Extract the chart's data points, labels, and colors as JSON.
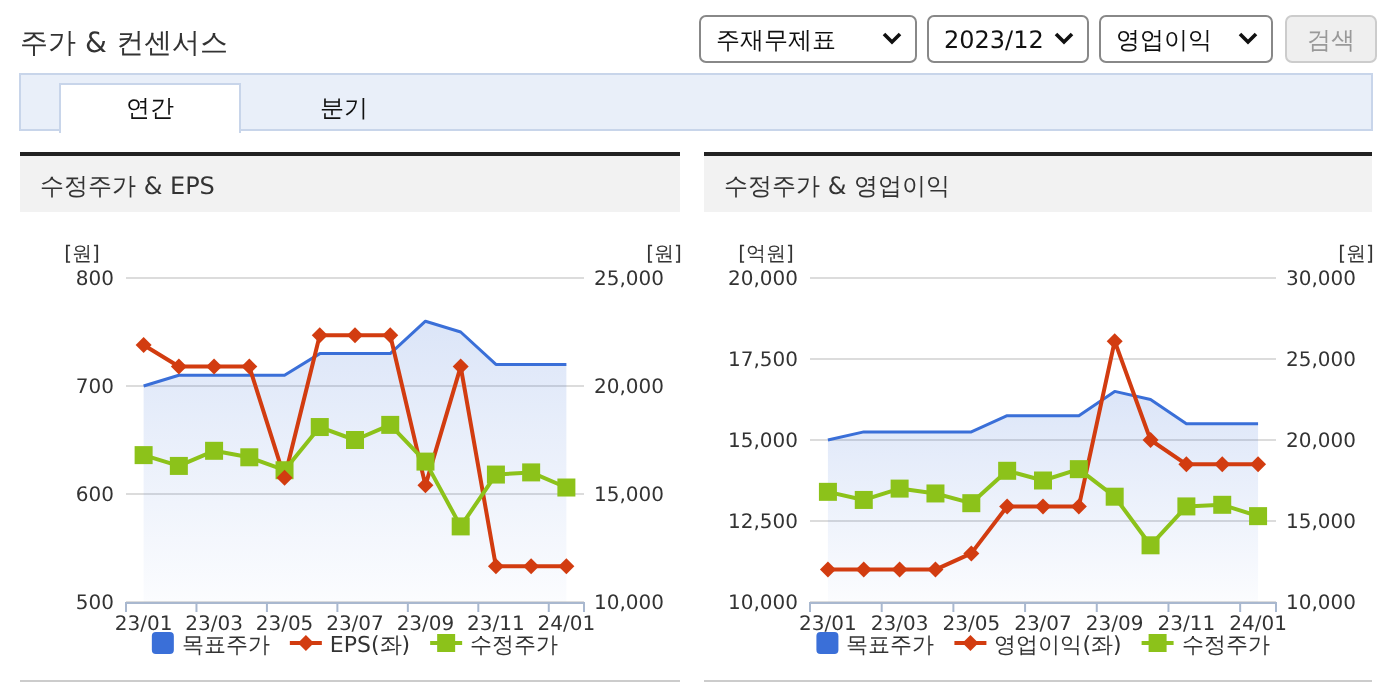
{
  "chart_data": [
    {
      "type": "other",
      "title": "주가 & 컨센서스",
      "annotations": [
        "주재무제표",
        "2023/12",
        "영업이익",
        "검색",
        "연간",
        "분기"
      ]
    },
    {
      "type": "line",
      "title": "수정주가 & EPS",
      "ylabel": "[원]",
      "y2label": "[원]",
      "categories": [
        "23/01",
        null,
        "23/03",
        null,
        "23/05",
        null,
        "23/07",
        null,
        "23/09",
        null,
        "23/11",
        null,
        "24/01"
      ],
      "series": [
        {
          "name": "목표주가",
          "type": "area",
          "axis": "y2",
          "color": "#3a6fd8",
          "values": [
            20000,
            20500,
            20500,
            20500,
            20500,
            21500,
            21500,
            21500,
            23000,
            22500,
            21000,
            21000,
            21000
          ]
        },
        {
          "name": "EPS(좌)",
          "type": "line",
          "color": "#d23c10",
          "marker": "diamond",
          "values": [
            738,
            718,
            718,
            718,
            615,
            747,
            747,
            747,
            608,
            718,
            533,
            533,
            533
          ]
        },
        {
          "name": "수정주가",
          "type": "line",
          "axis": "y2",
          "color": "#8cc21a",
          "marker": "square",
          "values": [
            16800,
            16300,
            17000,
            16700,
            16100,
            18100,
            17500,
            18200,
            16500,
            13500,
            15900,
            16000,
            15300
          ]
        }
      ],
      "ylim": [
        500,
        800
      ],
      "yticks": [
        500,
        600,
        700,
        800
      ],
      "y2lim": [
        10000,
        25000
      ],
      "y2ticks": [
        {
          "value": 10000,
          "label": "10,000"
        },
        {
          "value": 15000,
          "label": "15,000"
        },
        {
          "value": 20000,
          "label": "20,000"
        },
        {
          "value": 25000,
          "label": "25,000"
        }
      ],
      "grid": "y",
      "legend": "bottom"
    },
    {
      "type": "line",
      "title": "수정주가 & 영업이익",
      "ylabel": "[억원]",
      "y2label": "[원]",
      "categories": [
        "23/01",
        null,
        "23/03",
        null,
        "23/05",
        null,
        "23/07",
        null,
        "23/09",
        null,
        "23/11",
        null,
        "24/01"
      ],
      "series": [
        {
          "name": "목표주가",
          "type": "area",
          "axis": "y2",
          "color": "#3a6fd8",
          "values": [
            20000,
            20500,
            20500,
            20500,
            20500,
            21500,
            21500,
            21500,
            23000,
            22500,
            21000,
            21000,
            21000
          ]
        },
        {
          "name": "영업이익(좌)",
          "type": "line",
          "color": "#d23c10",
          "marker": "diamond",
          "values": [
            11000,
            11000,
            11000,
            11000,
            11500,
            12950,
            12950,
            12950,
            18050,
            15000,
            14250,
            14250,
            14250
          ]
        },
        {
          "name": "수정주가",
          "type": "line",
          "axis": "y2",
          "color": "#8cc21a",
          "marker": "square",
          "values": [
            16800,
            16300,
            17000,
            16700,
            16100,
            18100,
            17500,
            18200,
            16500,
            13500,
            15900,
            16000,
            15300
          ]
        }
      ],
      "ylim": [
        10000,
        20000
      ],
      "yticks": [
        {
          "value": 10000,
          "label": "10,000"
        },
        {
          "value": 12500,
          "label": "12,500"
        },
        {
          "value": 15000,
          "label": "15,000"
        },
        {
          "value": 17500,
          "label": "17,500"
        },
        {
          "value": 20000,
          "label": "20,000"
        }
      ],
      "y2lim": [
        10000,
        30000
      ],
      "y2ticks": [
        {
          "value": 10000,
          "label": "10,000"
        },
        {
          "value": 15000,
          "label": "15,000"
        },
        {
          "value": 20000,
          "label": "20,000"
        },
        {
          "value": 25000,
          "label": "25,000"
        },
        {
          "value": 30000,
          "label": "30,000"
        }
      ],
      "grid": "y",
      "legend": "bottom"
    }
  ]
}
